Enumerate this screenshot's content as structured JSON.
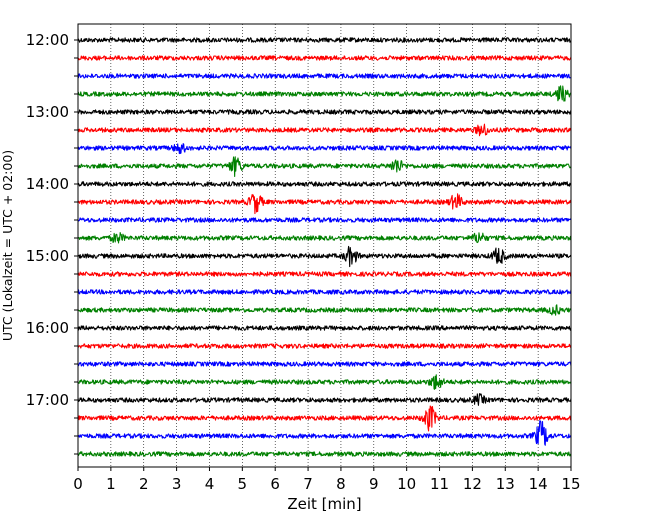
{
  "chart_data": {
    "type": "line",
    "title": "",
    "xlabel": "Zeit  [min]",
    "ylabel": "UTC (Lokalzeit = UTC + 02:00)",
    "xlim": [
      0,
      15
    ],
    "x_ticks": [
      0,
      1,
      2,
      3,
      4,
      5,
      6,
      7,
      8,
      9,
      10,
      11,
      12,
      13,
      14,
      15
    ],
    "y_tick_labels": [
      "12:00",
      "13:00",
      "14:00",
      "15:00",
      "16:00",
      "17:00"
    ],
    "traces_per_hour": 4,
    "trace_length_min": 15,
    "grid": "vertical dotted at each minute",
    "colors": [
      "#000000",
      "#ff0000",
      "#0000ff",
      "#008000"
    ],
    "traces": [
      {
        "start": "12:00",
        "color": "#000000",
        "events": []
      },
      {
        "start": "12:15",
        "color": "#ff0000",
        "events": []
      },
      {
        "start": "12:30",
        "color": "#0000ff",
        "events": []
      },
      {
        "start": "12:45",
        "color": "#008000",
        "events": [
          {
            "t": 14.7,
            "amp": 1.4
          }
        ]
      },
      {
        "start": "13:00",
        "color": "#000000",
        "events": []
      },
      {
        "start": "13:15",
        "color": "#ff0000",
        "events": [
          {
            "t": 12.3,
            "amp": 1.0
          }
        ]
      },
      {
        "start": "13:30",
        "color": "#0000ff",
        "events": [
          {
            "t": 3.1,
            "amp": 0.8
          }
        ]
      },
      {
        "start": "13:45",
        "color": "#008000",
        "events": [
          {
            "t": 4.8,
            "amp": 1.6
          },
          {
            "t": 9.7,
            "amp": 1.2
          }
        ]
      },
      {
        "start": "14:00",
        "color": "#000000",
        "events": []
      },
      {
        "start": "14:15",
        "color": "#ff0000",
        "events": [
          {
            "t": 5.4,
            "amp": 1.8
          },
          {
            "t": 11.5,
            "amp": 1.3
          }
        ]
      },
      {
        "start": "14:30",
        "color": "#0000ff",
        "events": []
      },
      {
        "start": "14:45",
        "color": "#008000",
        "events": [
          {
            "t": 1.2,
            "amp": 0.8
          },
          {
            "t": 12.2,
            "amp": 0.9
          }
        ]
      },
      {
        "start": "15:00",
        "color": "#000000",
        "events": [
          {
            "t": 8.3,
            "amp": 1.6
          },
          {
            "t": 12.8,
            "amp": 1.4
          }
        ]
      },
      {
        "start": "15:15",
        "color": "#ff0000",
        "events": []
      },
      {
        "start": "15:30",
        "color": "#0000ff",
        "events": []
      },
      {
        "start": "15:45",
        "color": "#008000",
        "events": [
          {
            "t": 14.5,
            "amp": 0.7
          }
        ]
      },
      {
        "start": "16:00",
        "color": "#000000",
        "events": []
      },
      {
        "start": "16:15",
        "color": "#ff0000",
        "events": []
      },
      {
        "start": "16:30",
        "color": "#0000ff",
        "events": []
      },
      {
        "start": "16:45",
        "color": "#008000",
        "events": [
          {
            "t": 10.9,
            "amp": 1.3
          }
        ]
      },
      {
        "start": "17:00",
        "color": "#000000",
        "events": [
          {
            "t": 12.2,
            "amp": 0.8
          }
        ]
      },
      {
        "start": "17:15",
        "color": "#ff0000",
        "events": [
          {
            "t": 10.7,
            "amp": 2.2
          }
        ]
      },
      {
        "start": "17:30",
        "color": "#0000ff",
        "events": [
          {
            "t": 14.1,
            "amp": 2.6
          }
        ]
      },
      {
        "start": "17:45",
        "color": "#008000",
        "events": []
      }
    ]
  }
}
